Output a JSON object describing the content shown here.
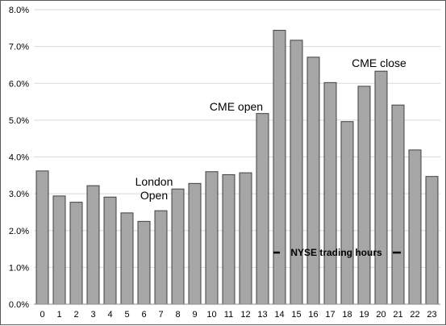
{
  "chart_data": {
    "type": "bar",
    "categories": [
      "0",
      "1",
      "2",
      "3",
      "4",
      "5",
      "6",
      "7",
      "8",
      "9",
      "10",
      "11",
      "12",
      "13",
      "14",
      "15",
      "16",
      "17",
      "18",
      "19",
      "20",
      "21",
      "22",
      "23"
    ],
    "values": [
      3.62,
      2.94,
      2.77,
      3.22,
      2.91,
      2.48,
      2.25,
      2.54,
      3.13,
      3.28,
      3.6,
      3.52,
      3.57,
      5.18,
      7.44,
      7.17,
      6.71,
      6.02,
      4.96,
      5.92,
      6.33,
      5.41,
      4.19,
      3.47
    ],
    "ylim": [
      0,
      8
    ],
    "y_ticks": [
      "0.0%",
      "1.0%",
      "2.0%",
      "3.0%",
      "4.0%",
      "5.0%",
      "6.0%",
      "7.0%",
      "8.0%"
    ],
    "grid": true,
    "bar_color": "#a6a6a6",
    "bar_edge_color": "#404040",
    "annotations": {
      "london_open_line1": "London",
      "london_open_line2": "Open",
      "cme_open": "CME open",
      "cme_close": "CME close",
      "nyse_hours": "NYSE trading hours",
      "nyse_range": [
        14,
        21
      ]
    }
  }
}
